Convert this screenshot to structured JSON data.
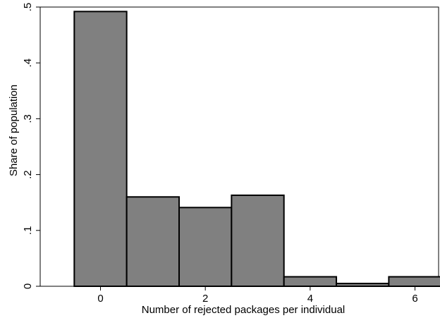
{
  "chart_data": {
    "type": "bar",
    "title": "",
    "xlabel": "Number of rejected packages per individual",
    "ylabel": "Share of population",
    "categories": [
      "0",
      "1",
      "2",
      "3",
      "4",
      "5",
      "6"
    ],
    "values": [
      0.492,
      0.16,
      0.141,
      0.163,
      0.017,
      0.005,
      0.017
    ],
    "xlim": [
      -1.15,
      6.45
    ],
    "ylim": [
      0,
      0.5
    ],
    "x_ticks": [
      0,
      2,
      4,
      6
    ],
    "x_tick_labels": [
      "0",
      "2",
      "4",
      "6"
    ],
    "y_ticks": [
      0,
      0.1,
      0.2,
      0.3,
      0.4,
      0.5
    ],
    "y_tick_labels": [
      "0",
      ".1",
      ".2",
      ".3",
      ".4",
      ".5"
    ],
    "bar_color": "#808080",
    "bar_edge_color": "#000000",
    "grid": false,
    "legend": "none"
  }
}
